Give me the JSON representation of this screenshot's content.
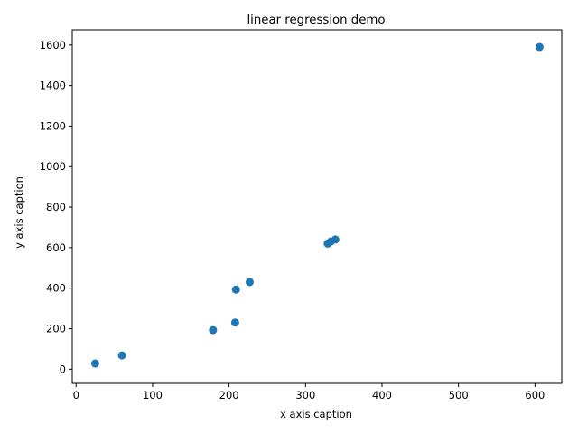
{
  "chart_data": {
    "type": "scatter",
    "title": "linear regression demo",
    "xlabel": "x axis caption",
    "ylabel": "y axis caption",
    "xlim": [
      -5,
      635
    ],
    "ylim": [
      -70,
      1675
    ],
    "x_ticks": [
      0,
      100,
      200,
      300,
      400,
      500,
      600
    ],
    "y_ticks": [
      0,
      200,
      400,
      600,
      800,
      1000,
      1200,
      1400,
      1600
    ],
    "grid": false,
    "marker_color": "#1f77b4",
    "series": [
      {
        "x": [
          25,
          60,
          179,
          208,
          209,
          227,
          329,
          333,
          339,
          606
        ],
        "y": [
          28,
          68,
          193,
          230,
          393,
          430,
          620,
          630,
          640,
          1590
        ]
      }
    ]
  }
}
